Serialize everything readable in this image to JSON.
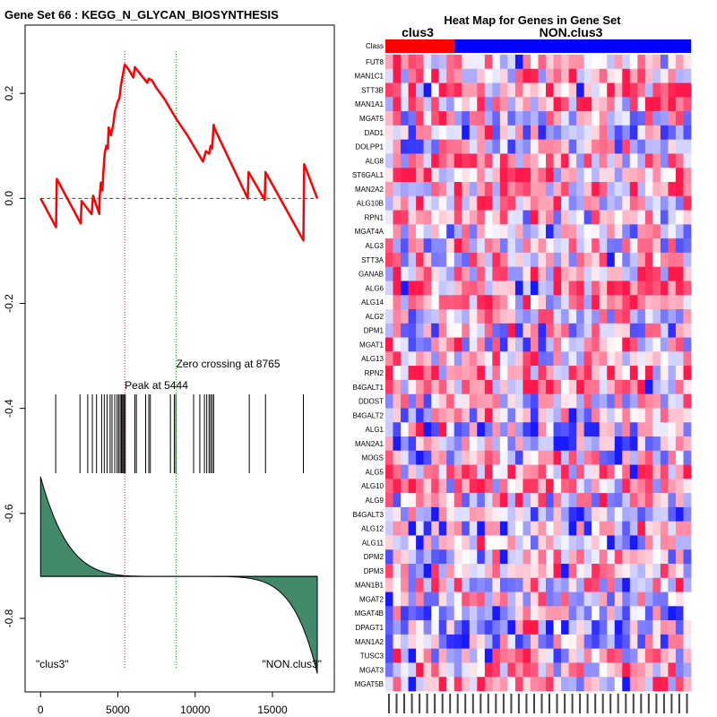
{
  "chart_data": [
    {
      "type": "line",
      "title": "Gene Set  66 : KEGG_N_GLYCAN_BIOSYNTHESIS",
      "xlim": [
        -1000,
        19000
      ],
      "ylim": [
        -0.94,
        0.33
      ],
      "x_ticks": [
        0,
        5000,
        10000,
        15000
      ],
      "x_tick_labels": [
        "0",
        "5000",
        "10000",
        "15000"
      ],
      "y_ticks": [
        0.2,
        0.0,
        -0.2,
        -0.4,
        -0.6,
        -0.8
      ],
      "y_tick_labels": [
        "0.2",
        "0.0",
        "-0.2",
        "-0.4",
        "-0.6",
        "-0.8"
      ],
      "series": [
        {
          "color": "#ff0000",
          "points": [
            [
              0,
              0.0
            ],
            [
              1000,
              -0.055
            ],
            [
              1050,
              0.037
            ],
            [
              2600,
              -0.048
            ],
            [
              2650,
              -0.005
            ],
            [
              3300,
              -0.03
            ],
            [
              3400,
              0.005
            ],
            [
              3800,
              -0.03
            ],
            [
              3820,
              0.0
            ],
            [
              3900,
              0.03
            ],
            [
              4000,
              0.015
            ],
            [
              4060,
              0.05
            ],
            [
              4150,
              0.085
            ],
            [
              4250,
              0.1
            ],
            [
              4350,
              0.095
            ],
            [
              4400,
              0.135
            ],
            [
              4550,
              0.12
            ],
            [
              4700,
              0.14
            ],
            [
              4800,
              0.165
            ],
            [
              4900,
              0.175
            ],
            [
              5000,
              0.185
            ],
            [
              5100,
              0.19
            ],
            [
              5200,
              0.215
            ],
            [
              5300,
              0.232
            ],
            [
              5444,
              0.255
            ],
            [
              5700,
              0.245
            ],
            [
              6000,
              0.23
            ],
            [
              6100,
              0.25
            ],
            [
              6500,
              0.235
            ],
            [
              6900,
              0.22
            ],
            [
              7000,
              0.228
            ],
            [
              7200,
              0.225
            ],
            [
              7500,
              0.21
            ],
            [
              8000,
              0.19
            ],
            [
              8765,
              0.152
            ],
            [
              9500,
              0.12
            ],
            [
              10200,
              0.085
            ],
            [
              10500,
              0.07
            ],
            [
              10700,
              0.09
            ],
            [
              10900,
              0.085
            ],
            [
              11000,
              0.1
            ],
            [
              11100,
              0.095
            ],
            [
              11200,
              0.14
            ],
            [
              11300,
              0.13
            ],
            [
              13400,
              0.0
            ],
            [
              13450,
              0.05
            ],
            [
              14500,
              -0.003
            ],
            [
              14550,
              0.05
            ],
            [
              17000,
              -0.08
            ],
            [
              17050,
              0.065
            ],
            [
              17900,
              0.0
            ]
          ]
        }
      ],
      "zero_line": 0.0,
      "peak_x": 5444,
      "zero_cross_x": 8765,
      "annotations": {
        "peak": "Peak at 5444",
        "zero_crossing": "Zero crossing at 8765",
        "left_class": "\"clus3\"",
        "right_class": "\"NON.clus3\""
      },
      "hits": [
        980,
        2550,
        3050,
        3350,
        3620,
        3950,
        4120,
        4300,
        4500,
        4620,
        4800,
        4950,
        5050,
        5150,
        5230,
        5300,
        5370,
        5420,
        5480,
        6100,
        6200,
        6800,
        7000,
        7100,
        8400,
        8650,
        8750,
        9900,
        10300,
        10600,
        10750,
        10900,
        11000,
        11100,
        11200,
        13500,
        14550,
        17000
      ],
      "rank_metric": {
        "color": "#438a6b",
        "baseline": -0.72,
        "start": -0.53,
        "end": -0.905
      }
    },
    {
      "type": "heatmap",
      "title": "Heat Map for Genes in Gene Set",
      "class_labels": [
        "clus3",
        "NON.clus3"
      ],
      "class_colors": [
        "#ff0000",
        "#0000ff"
      ],
      "class_row_label": "Class",
      "n_clus3": 9,
      "n_samples": 40,
      "genes": [
        "FUT8",
        "MAN1C1",
        "STT3B",
        "MAN1A1",
        "MGAT5",
        "DAD1",
        "DOLPP1",
        "ALG8",
        "ST6GAL1",
        "MAN2A2",
        "ALG10B",
        "RPN1",
        "MGAT4A",
        "ALG3",
        "STT3A",
        "GANAB",
        "ALG6",
        "ALG14",
        "ALG2",
        "DPM1",
        "MGAT1",
        "ALG13",
        "RPN2",
        "B4GALT1",
        "DDOST",
        "B4GALT2",
        "ALG1",
        "MAN2A1",
        "MOGS",
        "ALG5",
        "ALG10",
        "ALG9",
        "B4GALT3",
        "ALG12",
        "ALG11",
        "DPM2",
        "DPM3",
        "MAN1B1",
        "MGAT2",
        "MGAT4B",
        "DPAGT1",
        "MAN1A2",
        "TUSC3",
        "MGAT3",
        "MGAT5B"
      ]
    }
  ]
}
